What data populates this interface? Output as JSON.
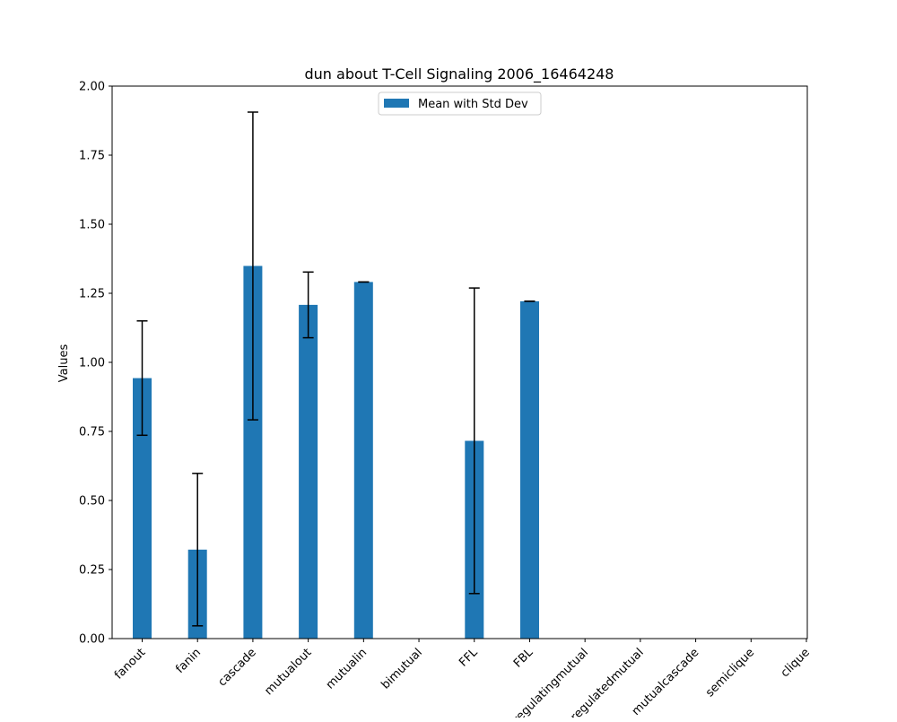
{
  "chart_data": {
    "type": "bar",
    "title": "dun about T-Cell Signaling 2006_16464248",
    "xlabel": "",
    "ylabel": "Values",
    "ylim": [
      0,
      2.0
    ],
    "yticks": [
      "0.00",
      "0.25",
      "0.50",
      "0.75",
      "1.00",
      "1.25",
      "1.50",
      "1.75",
      "2.00"
    ],
    "categories": [
      "fanout",
      "fanin",
      "cascade",
      "mutualout",
      "mutualin",
      "bimutual",
      "FFL",
      "FBL",
      "regulatingmutual",
      "regulatedmutual",
      "mutualcascade",
      "semiclique",
      "clique"
    ],
    "series": [
      {
        "name": "Mean with Std Dev",
        "values": [
          0.943,
          0.322,
          1.349,
          1.208,
          1.291,
          0,
          0.716,
          1.221,
          0,
          0,
          0,
          0,
          0
        ],
        "errors": [
          0.207,
          0.276,
          0.557,
          0.119,
          0.0,
          0,
          0.553,
          0.0,
          0,
          0,
          0,
          0,
          0
        ]
      }
    ],
    "colors": {
      "bar": "#1f77b4",
      "error": "#000000"
    },
    "grid": false,
    "legend_position": "upper center"
  }
}
